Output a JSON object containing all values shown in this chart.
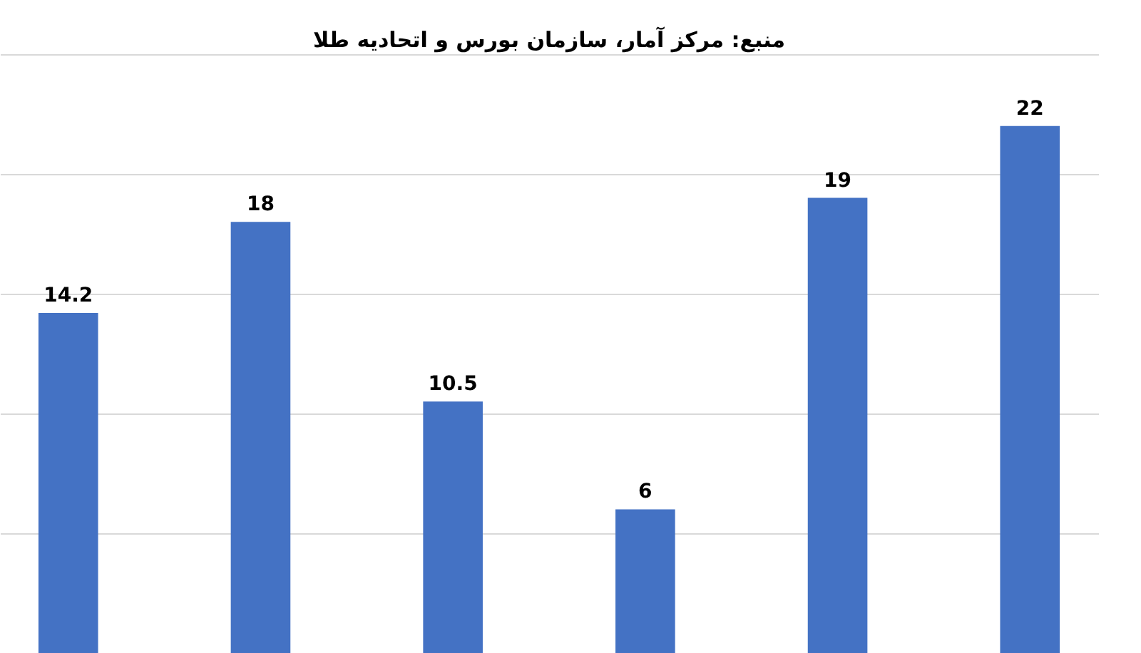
{
  "chart_data": {
    "type": "bar",
    "categories": [
      null,
      null,
      null,
      null,
      null,
      null
    ],
    "values": [
      14.2,
      18,
      10.5,
      6,
      19,
      22
    ],
    "color": "#4472c4",
    "data_labels": true,
    "ylim": [
      0,
      25
    ],
    "yticks": [
      {
        "value": 0,
        "label": null
      },
      {
        "value": 5,
        "label": null
      },
      {
        "value": 10,
        "label": null
      },
      {
        "value": 15,
        "label": null
      },
      {
        "value": 20,
        "label": null
      },
      {
        "value": 25,
        "label": null
      }
    ],
    "grid": "y",
    "annotations": [
      "منبع: مرکز آمار، سازمان بورس و اتحادیه طلا"
    ]
  }
}
